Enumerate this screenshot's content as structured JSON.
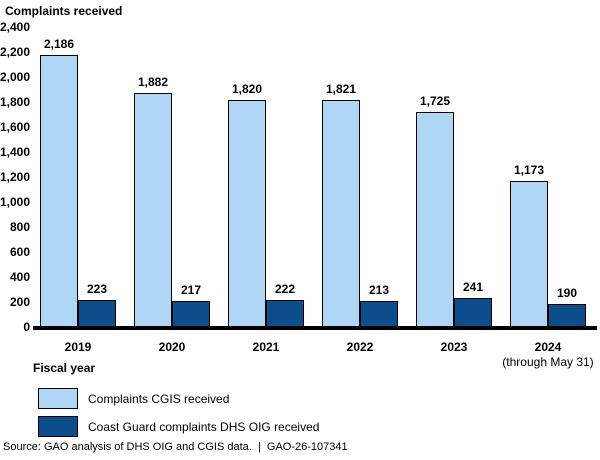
{
  "chart_data": {
    "type": "bar",
    "title": "Complaints received",
    "xlabel": "Fiscal year",
    "categories": [
      "2019",
      "2020",
      "2021",
      "2022",
      "2023",
      "2024"
    ],
    "category_note": {
      "category": "2024",
      "note": "(through May 31)"
    },
    "series": [
      {
        "name": "Complaints CGIS received",
        "color": "#B0D6F5",
        "values": [
          2186,
          1882,
          1820,
          1821,
          1725,
          1173
        ]
      },
      {
        "name": "Coast Guard complaints DHS OIG received",
        "color": "#0E4D8C",
        "values": [
          223,
          217,
          222,
          213,
          241,
          190
        ]
      }
    ],
    "ylim": [
      0,
      2400
    ],
    "ytick_step": 200,
    "grid": false,
    "legend_position": "bottom-left",
    "bar_border_color": "#000000",
    "baseline_color": "#000000"
  },
  "source": "Source: GAO analysis of DHS OIG and CGIS data.  |  GAO-26-107341"
}
